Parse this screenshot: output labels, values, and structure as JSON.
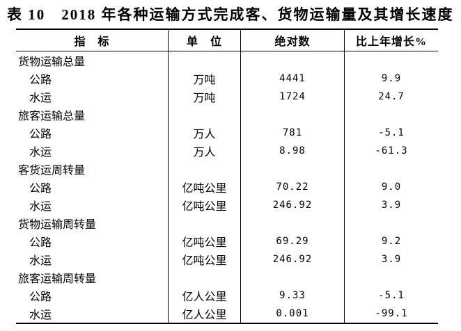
{
  "title": "表 10　2018 年各种运输方式完成客、货物运输量及其增长速度",
  "table": {
    "headers": {
      "indicator": "指　标",
      "unit": "单　位",
      "value": "绝对数",
      "growth": "比上年增长%"
    },
    "rows": [
      {
        "indicator": "货物运输总量",
        "unit": "",
        "value": "",
        "growth": ""
      },
      {
        "indicator": "公路",
        "unit": "万吨",
        "value": "4441",
        "growth": "9.9"
      },
      {
        "indicator": "水运",
        "unit": "万吨",
        "value": "1724",
        "growth": "24.7"
      },
      {
        "indicator": "旅客运输总量",
        "unit": "",
        "value": "",
        "growth": ""
      },
      {
        "indicator": "公路",
        "unit": "万人",
        "value": "781",
        "growth": "-5.1"
      },
      {
        "indicator": "水运",
        "unit": "万人",
        "value": "8.98",
        "growth": "-61.3"
      },
      {
        "indicator": "客货运周转量",
        "unit": "",
        "value": "",
        "growth": ""
      },
      {
        "indicator": "公路",
        "unit": "亿吨公里",
        "value": "70.22",
        "growth": "9.0"
      },
      {
        "indicator": "水运",
        "unit": "亿吨公里",
        "value": "246.92",
        "growth": "3.9"
      },
      {
        "indicator": "货物运输周转量",
        "unit": "",
        "value": "",
        "growth": ""
      },
      {
        "indicator": "公路",
        "unit": "亿吨公里",
        "value": "69.29",
        "growth": "9.2"
      },
      {
        "indicator": "水运",
        "unit": "亿吨公里",
        "value": "246.92",
        "growth": "3.9"
      },
      {
        "indicator": "旅客运输周转量",
        "unit": "",
        "value": "",
        "growth": ""
      },
      {
        "indicator": "公路",
        "unit": "亿人公里",
        "value": "9.33",
        "growth": "-5.1"
      },
      {
        "indicator": "水运",
        "unit": "亿人公里",
        "value": "0.001",
        "growth": "-99.1"
      }
    ]
  }
}
